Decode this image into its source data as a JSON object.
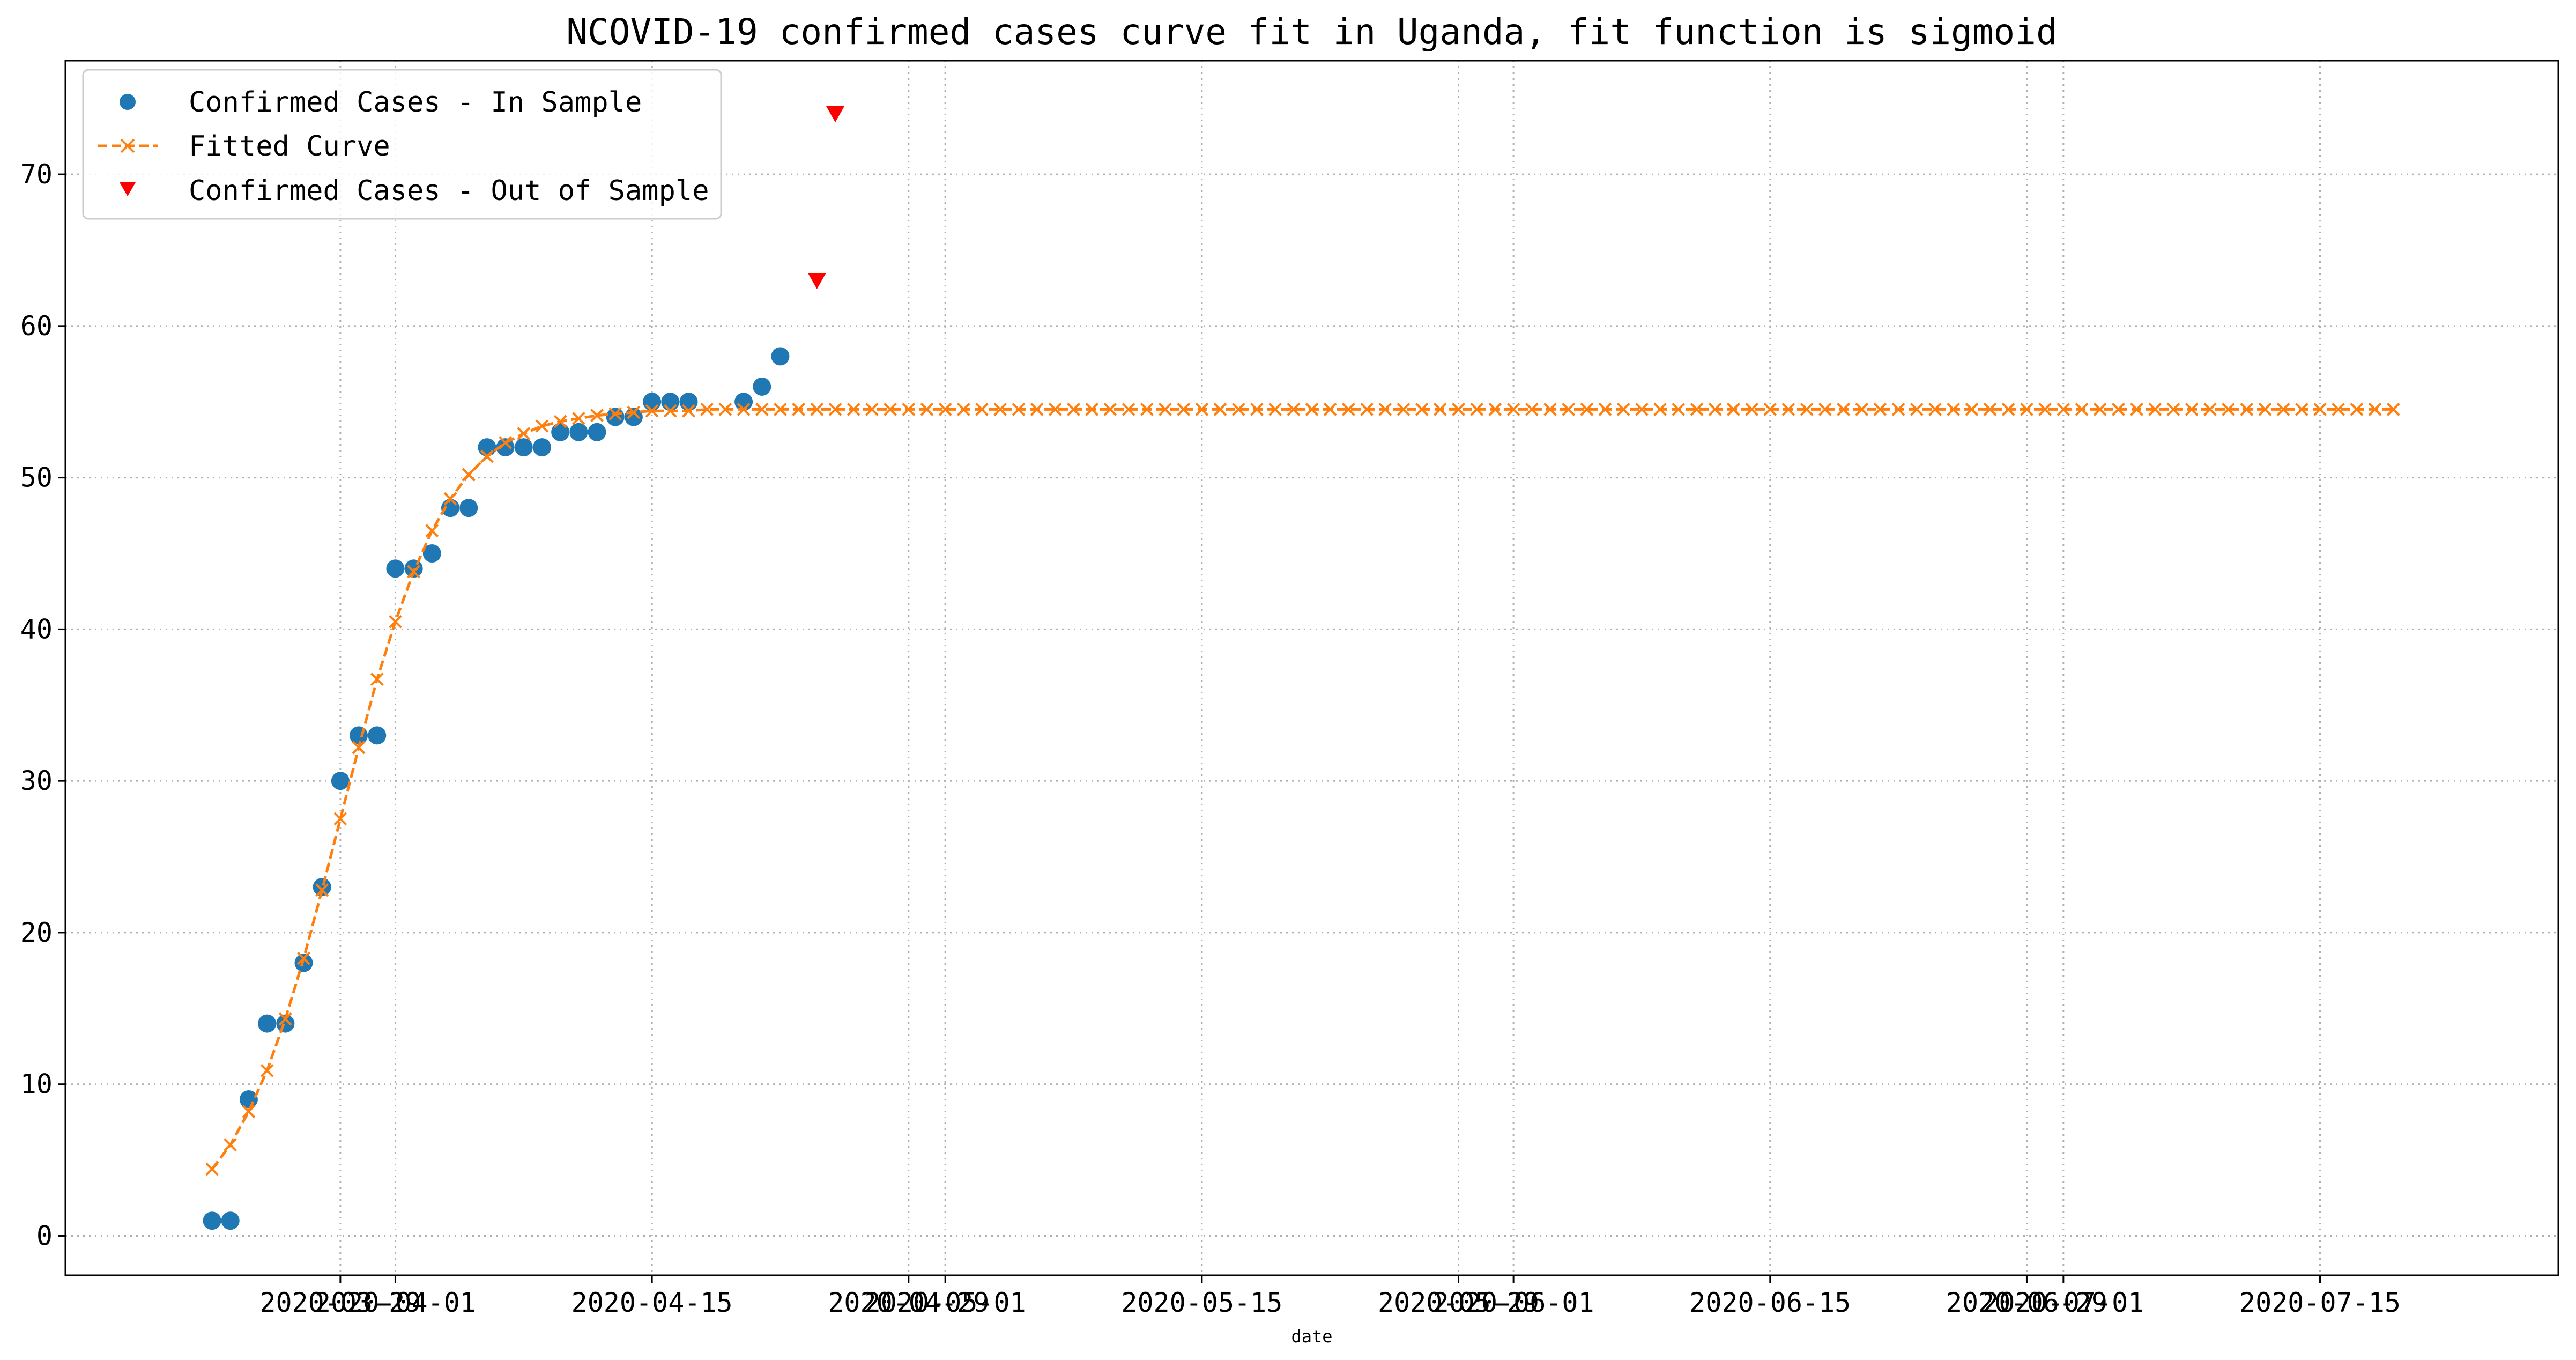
{
  "chart_data": {
    "type": "scatter",
    "title": "NCOVID-19 confirmed cases curve fit in Uganda, fit function is sigmoid",
    "xlabel": "date",
    "ylabel": "",
    "x_axis_type": "date",
    "xlim": [
      "2020-03-14",
      "2020-07-28"
    ],
    "ylim": [
      -2.6,
      77.5
    ],
    "grid": true,
    "legend_position": "top-left",
    "x_ticks": [
      {
        "date": "2020-03-29",
        "label": "2020-03-29"
      },
      {
        "date": "2020-04-01",
        "label": "2020-04-01"
      },
      {
        "date": "2020-04-15",
        "label": "2020-04-15"
      },
      {
        "date": "2020-04-29",
        "label": "2020-04-29"
      },
      {
        "date": "2020-05-01",
        "label": "2020-05-01"
      },
      {
        "date": "2020-05-15",
        "label": "2020-05-15"
      },
      {
        "date": "2020-05-29",
        "label": "2020-05-29"
      },
      {
        "date": "2020-06-01",
        "label": "2020-06-01"
      },
      {
        "date": "2020-06-15",
        "label": "2020-06-15"
      },
      {
        "date": "2020-06-29",
        "label": "2020-06-29"
      },
      {
        "date": "2020-07-01",
        "label": "2020-07-01"
      },
      {
        "date": "2020-07-15",
        "label": "2020-07-15"
      }
    ],
    "y_ticks": [
      0,
      10,
      20,
      30,
      40,
      50,
      60,
      70
    ],
    "series": [
      {
        "name": "Confirmed Cases - In Sample",
        "kind": "scatter",
        "marker": "circle",
        "color": "#1f77b4",
        "points": [
          {
            "x": "2020-03-22",
            "y": 1
          },
          {
            "x": "2020-03-23",
            "y": 1
          },
          {
            "x": "2020-03-24",
            "y": 9
          },
          {
            "x": "2020-03-25",
            "y": 14
          },
          {
            "x": "2020-03-26",
            "y": 14
          },
          {
            "x": "2020-03-27",
            "y": 18
          },
          {
            "x": "2020-03-28",
            "y": 23
          },
          {
            "x": "2020-03-29",
            "y": 30
          },
          {
            "x": "2020-03-30",
            "y": 33
          },
          {
            "x": "2020-03-31",
            "y": 33
          },
          {
            "x": "2020-04-01",
            "y": 44
          },
          {
            "x": "2020-04-02",
            "y": 44
          },
          {
            "x": "2020-04-03",
            "y": 45
          },
          {
            "x": "2020-04-04",
            "y": 48
          },
          {
            "x": "2020-04-05",
            "y": 48
          },
          {
            "x": "2020-04-06",
            "y": 52
          },
          {
            "x": "2020-04-07",
            "y": 52
          },
          {
            "x": "2020-04-08",
            "y": 52
          },
          {
            "x": "2020-04-09",
            "y": 52
          },
          {
            "x": "2020-04-10",
            "y": 53
          },
          {
            "x": "2020-04-11",
            "y": 53
          },
          {
            "x": "2020-04-12",
            "y": 53
          },
          {
            "x": "2020-04-13",
            "y": 54
          },
          {
            "x": "2020-04-14",
            "y": 54
          },
          {
            "x": "2020-04-15",
            "y": 55
          },
          {
            "x": "2020-04-16",
            "y": 55
          },
          {
            "x": "2020-04-17",
            "y": 55
          },
          {
            "x": "2020-04-20",
            "y": 55
          },
          {
            "x": "2020-04-21",
            "y": 56
          },
          {
            "x": "2020-04-22",
            "y": 58
          }
        ]
      },
      {
        "name": "Fitted Curve",
        "kind": "line",
        "marker": "x",
        "line_style": "dashed",
        "color": "#ff7f0e",
        "start": "2020-03-22",
        "end": "2020-07-19",
        "y": [
          4.4,
          6.0,
          8.2,
          10.9,
          14.3,
          18.3,
          22.8,
          27.5,
          32.2,
          36.7,
          40.5,
          43.8,
          46.5,
          48.6,
          50.2,
          51.4,
          52.3,
          52.9,
          53.4,
          53.7,
          53.9,
          54.1,
          54.2,
          54.3,
          54.4,
          54.4,
          54.4,
          54.5,
          54.5,
          54.5,
          54.5,
          54.5,
          54.5,
          54.5,
          54.5,
          54.5,
          54.5,
          54.5,
          54.5,
          54.5,
          54.5,
          54.5,
          54.5,
          54.5,
          54.5,
          54.5,
          54.5,
          54.5,
          54.5,
          54.5,
          54.5,
          54.5,
          54.5,
          54.5,
          54.5,
          54.5,
          54.5,
          54.5,
          54.5,
          54.5,
          54.5,
          54.5,
          54.5,
          54.5,
          54.5,
          54.5,
          54.5,
          54.5,
          54.5,
          54.5,
          54.5,
          54.5,
          54.5,
          54.5,
          54.5,
          54.5,
          54.5,
          54.5,
          54.5,
          54.5,
          54.5,
          54.5,
          54.5,
          54.5,
          54.5,
          54.5,
          54.5,
          54.5,
          54.5,
          54.5,
          54.5,
          54.5,
          54.5,
          54.5,
          54.5,
          54.5,
          54.5,
          54.5,
          54.5,
          54.5,
          54.5,
          54.5,
          54.5,
          54.5,
          54.5,
          54.5,
          54.5,
          54.5,
          54.5,
          54.5,
          54.5,
          54.5,
          54.5,
          54.5,
          54.5,
          54.5,
          54.5,
          54.5,
          54.5,
          54.5
        ]
      },
      {
        "name": "Confirmed Cases - Out of Sample",
        "kind": "scatter",
        "marker": "triangle-down",
        "color": "#ff0000",
        "points": [
          {
            "x": "2020-04-24",
            "y": 63
          },
          {
            "x": "2020-04-25",
            "y": 74
          }
        ]
      }
    ]
  }
}
